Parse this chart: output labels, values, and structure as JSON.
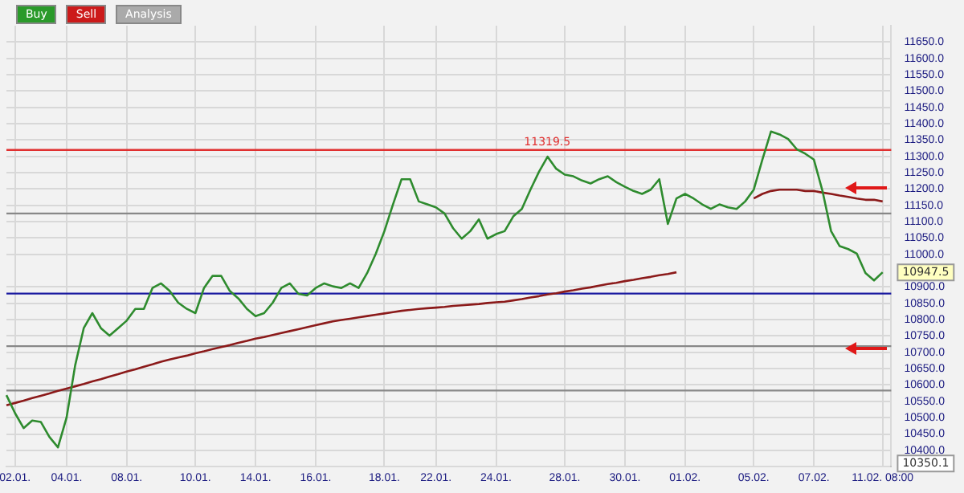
{
  "chart_data": {
    "type": "line",
    "categories": [
      null,
      "02.01.",
      null,
      null,
      null,
      null,
      null,
      "04.01.",
      null,
      null,
      null,
      null,
      null,
      null,
      "08.01.",
      null,
      null,
      null,
      null,
      null,
      null,
      null,
      "10.01.",
      null,
      null,
      null,
      null,
      null,
      null,
      "14.01.",
      null,
      null,
      null,
      null,
      null,
      null,
      "16.01.",
      null,
      null,
      null,
      null,
      null,
      null,
      null,
      "18.01.",
      null,
      null,
      null,
      null,
      null,
      "22.01.",
      null,
      null,
      null,
      null,
      null,
      null,
      "24.01.",
      null,
      null,
      null,
      null,
      null,
      null,
      null,
      "28.01.",
      null,
      null,
      null,
      null,
      null,
      null,
      "30.01.",
      null,
      null,
      null,
      null,
      null,
      null,
      "01.02.",
      null,
      null,
      null,
      null,
      null,
      null,
      null,
      "05.02.",
      null,
      null,
      null,
      null,
      null,
      null,
      "07.02.",
      null,
      null,
      null,
      null,
      null,
      null,
      null,
      "11.02. 08:00",
      null
    ],
    "series": [
      {
        "color": "#2e8b2e",
        "values": [
          10569,
          10514,
          10468,
          10491,
          10487,
          10441,
          10409,
          10500,
          10660,
          10774,
          10820,
          10774,
          10751,
          10774,
          10797,
          10833,
          10833,
          10897,
          10911,
          10888,
          10852,
          10833,
          10820,
          10897,
          10934,
          10934,
          10888,
          10865,
          10833,
          10811,
          10820,
          10852,
          10897,
          10911,
          10879,
          10874,
          10897,
          10911,
          10902,
          10897,
          10911,
          10897,
          10943,
          11002,
          11071,
          11153,
          11230,
          11230,
          11162,
          11153,
          11144,
          11125,
          11080,
          11048,
          11071,
          11107,
          11048,
          11062,
          11071,
          11116,
          11139,
          11198,
          11253,
          11299,
          11262,
          11244,
          11239,
          11226,
          11217,
          11230,
          11239,
          11221,
          11207,
          11194,
          11185,
          11198,
          11230,
          11093,
          11171,
          11185,
          11171,
          11153,
          11139,
          11153,
          11144,
          11139,
          11162,
          11198,
          11290,
          11376,
          11367,
          11353,
          11322,
          11308,
          11290,
          11194,
          11071,
          11025,
          11016,
          11002,
          10943,
          10920,
          10945,
          null
        ]
      },
      {
        "color": "#8b1a1a",
        "values": [
          10538,
          10545,
          10552,
          10560,
          10567,
          10574,
          10582,
          10589,
          10596,
          10603,
          10611,
          10618,
          10626,
          10633,
          10641,
          10648,
          10656,
          10663,
          10671,
          10678,
          10684,
          10690,
          10697,
          10703,
          10710,
          10716,
          10722,
          10729,
          10735,
          10742,
          10747,
          10753,
          10759,
          10765,
          10771,
          10777,
          10783,
          10789,
          10795,
          10799,
          10803,
          10807,
          10811,
          10815,
          10819,
          10823,
          10827,
          10830,
          10833,
          10835,
          10837,
          10839,
          10842,
          10844,
          10846,
          10848,
          10851,
          10853,
          10855,
          10859,
          10863,
          10868,
          10872,
          10877,
          10881,
          10886,
          10890,
          10895,
          10899,
          10904,
          10909,
          10913,
          10918,
          10922,
          10927,
          10931,
          10936,
          10940,
          10945,
          null,
          null,
          null,
          null,
          null,
          null,
          null,
          null,
          11171,
          11185,
          11194,
          11198,
          11198,
          11198,
          11194,
          11194,
          11189,
          11185,
          11180,
          11176,
          11171,
          11167,
          11167,
          11162,
          null
        ]
      }
    ],
    "ylim": [
      10350,
      11700
    ],
    "yticks": [
      {
        "value": 10400,
        "label": "10400.0"
      },
      {
        "value": 10450,
        "label": "10450.0"
      },
      {
        "value": 10500,
        "label": "10500.0"
      },
      {
        "value": 10550,
        "label": "10550.0"
      },
      {
        "value": 10600,
        "label": "10600.0"
      },
      {
        "value": 10650,
        "label": "10650.0"
      },
      {
        "value": 10700,
        "label": "10700.0"
      },
      {
        "value": 10750,
        "label": "10750.0"
      },
      {
        "value": 10800,
        "label": "10800.0"
      },
      {
        "value": 10850,
        "label": "10850.0"
      },
      {
        "value": 10900,
        "label": "10900.0"
      },
      {
        "value": 11000,
        "label": "11000.0"
      },
      {
        "value": 11050,
        "label": "11050.0"
      },
      {
        "value": 11100,
        "label": "11100.0"
      },
      {
        "value": 11150,
        "label": "11150.0"
      },
      {
        "value": 11200,
        "label": "11200.0"
      },
      {
        "value": 11250,
        "label": "11250.0"
      },
      {
        "value": 11300,
        "label": "11300.0"
      },
      {
        "value": 11350,
        "label": "11350.0"
      },
      {
        "value": 11400,
        "label": "11400.0"
      },
      {
        "value": 11450,
        "label": "11450.0"
      },
      {
        "value": 11500,
        "label": "11500.0"
      },
      {
        "value": 11550,
        "label": "11550.0"
      },
      {
        "value": 11600,
        "label": "11600.0"
      },
      {
        "value": 11650,
        "label": "11650.0"
      }
    ],
    "ref_lines": [
      {
        "axis": "y",
        "value": 11319.5,
        "label": "11319.5",
        "color": "#e03030"
      },
      {
        "axis": "y",
        "value": 10880,
        "color": "#1a1aa0"
      },
      {
        "axis": "y",
        "value": 11125,
        "color": "#888888"
      },
      {
        "axis": "y",
        "value": 10583,
        "color": "#888888"
      },
      {
        "axis": "y",
        "value": 10719,
        "color": "#888888"
      }
    ],
    "annotations": [
      "10947.5",
      "Buy",
      "Sell",
      "Analysis",
      "10350.1"
    ],
    "grid": true,
    "legend": false,
    "marker": "none",
    "line_style": "solid"
  }
}
